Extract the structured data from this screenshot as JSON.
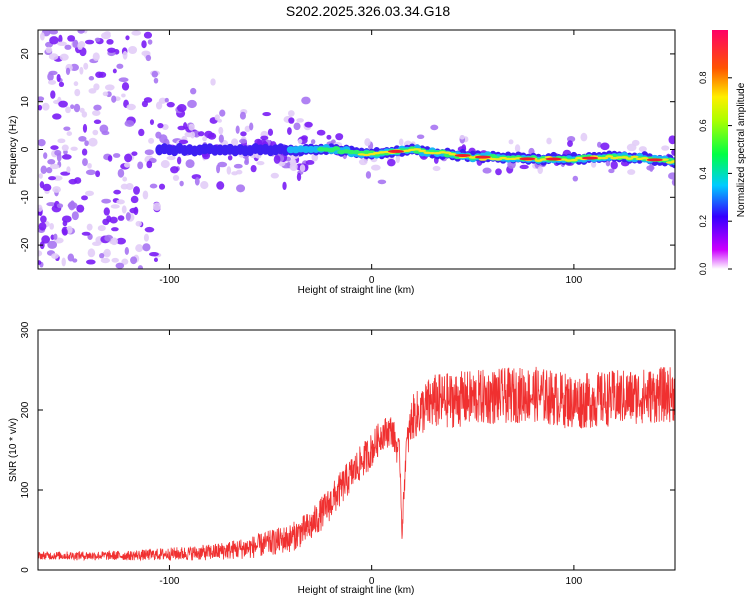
{
  "chart_data": [
    {
      "type": "heatmap",
      "title": "S202.2025.326.03.34.G18",
      "xlabel": "Height of straight line (km)",
      "ylabel": "Frequency (Hz)",
      "xlim": [
        -165,
        150
      ],
      "ylim": [
        -25,
        25
      ],
      "x_ticks": [
        -100,
        0,
        100
      ],
      "y_ticks": [
        -20,
        -10,
        0,
        10,
        20
      ],
      "colorbar": {
        "label": "Normalized spectral amplitude",
        "range": [
          0,
          1
        ],
        "ticks": [
          "0.0",
          "0.2",
          "0.4",
          "0.6",
          "0.8"
        ],
        "tick_values": [
          0.0,
          0.2,
          0.4,
          0.6,
          0.8
        ]
      },
      "ridge": {
        "description_points_x": [
          -165,
          -100,
          -60,
          -30,
          -20,
          0,
          20,
          50,
          80,
          100,
          120,
          150
        ],
        "description_points_freq": [
          0,
          0,
          0,
          0,
          0,
          -1,
          0,
          -1.5,
          -2,
          -2,
          -1.5,
          -2.5
        ]
      }
    },
    {
      "type": "line",
      "xlabel": "Height of straight line (km)",
      "ylabel": "SNR (10 * v/v)",
      "xlim": [
        -165,
        150
      ],
      "ylim": [
        0,
        300
      ],
      "x_ticks": [
        -100,
        0,
        100
      ],
      "y_ticks": [
        0,
        100,
        200,
        300
      ],
      "series": [
        {
          "name": "SNR",
          "color": "#f03030",
          "x": [
            -165,
            -120,
            -100,
            -80,
            -60,
            -40,
            -30,
            -20,
            -10,
            0,
            5,
            10,
            14,
            15,
            17,
            20,
            30,
            50,
            80,
            100,
            120,
            150
          ],
          "values": [
            18,
            18,
            20,
            22,
            28,
            40,
            55,
            85,
            120,
            150,
            170,
            175,
            140,
            45,
            150,
            190,
            210,
            215,
            220,
            210,
            215,
            220
          ],
          "noise": [
            5,
            6,
            8,
            10,
            14,
            18,
            20,
            22,
            22,
            22,
            20,
            20,
            20,
            10,
            20,
            28,
            35,
            35,
            35,
            35,
            35,
            35
          ]
        }
      ]
    }
  ]
}
